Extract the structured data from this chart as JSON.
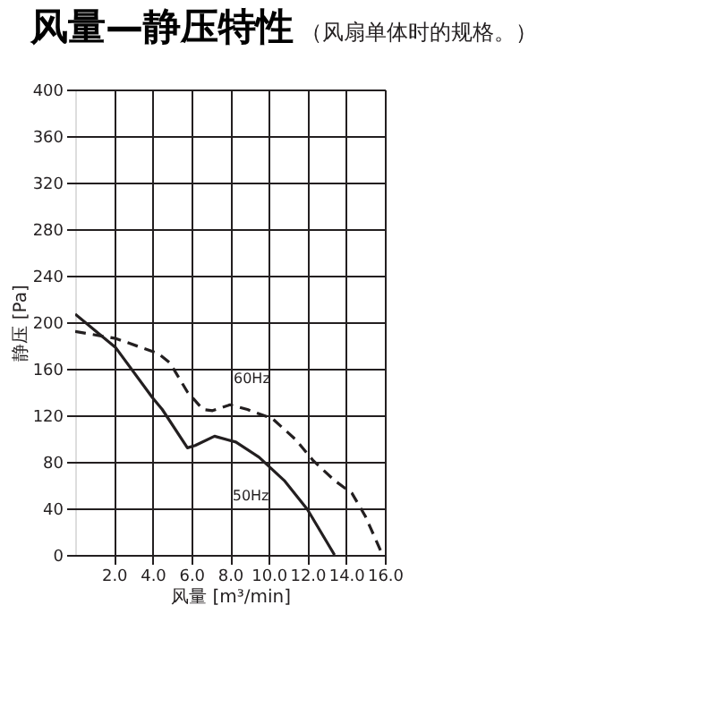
{
  "chart_data": {
    "type": "line",
    "title": "风量—静压特性",
    "subtitle": "（风扇单体时的规格。）",
    "xlabel": "风量 [m³/min]",
    "ylabel": "静压 [Pa]",
    "xlim": [
      0,
      16
    ],
    "ylim": [
      0,
      400
    ],
    "xticks": [
      {
        "value": 2,
        "label": "2.0"
      },
      {
        "value": 4,
        "label": "4.0"
      },
      {
        "value": 6,
        "label": "6.0"
      },
      {
        "value": 8,
        "label": "8.0"
      },
      {
        "value": 10,
        "label": "10.0"
      },
      {
        "value": 12,
        "label": "12.0"
      },
      {
        "value": 14,
        "label": "14.0"
      },
      {
        "value": 16,
        "label": "16.0"
      }
    ],
    "yticks": [
      0,
      40,
      80,
      120,
      160,
      200,
      240,
      280,
      320,
      360,
      400
    ],
    "grid": true,
    "legend": false,
    "marker": "none",
    "series": [
      {
        "name": "60Hz",
        "color": "#231f20",
        "line_style": "dashed",
        "x": [
          0,
          2.1,
          4.3,
          4.9,
          5.8,
          6.6,
          7.1,
          8.0,
          8.9,
          10.2,
          11.4,
          12.3,
          13.4,
          14.3,
          15.0,
          15.8,
          16.0
        ],
        "values": [
          192,
          186,
          173,
          165,
          140,
          125,
          124,
          129,
          125,
          117,
          99,
          81,
          64,
          53,
          33,
          3,
          0
        ]
      },
      {
        "name": "50Hz",
        "color": "#231f20",
        "line_style": "solid",
        "x": [
          0,
          2.1,
          4.0,
          4.5,
          5.8,
          6.2,
          7.2,
          8.3,
          9.5,
          10.8,
          12.0,
          13.4
        ],
        "values": [
          207,
          178,
          135,
          125,
          92,
          94,
          102,
          97,
          84,
          64,
          39,
          0
        ]
      }
    ]
  }
}
